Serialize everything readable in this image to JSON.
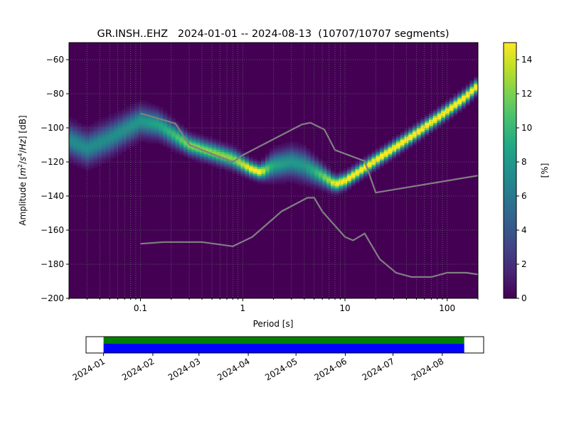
{
  "chart_data": [
    {
      "type": "heatmap",
      "title": "GR.INSH..EHZ   2024-01-01 -- 2024-08-13  (10707/10707 segments)",
      "xlabel": "Period [s]",
      "ylabel_parts": [
        "Amplitude [",
        "m",
        "2",
        "/",
        "s",
        "4",
        "/",
        "Hz",
        "] [dB]"
      ],
      "x_scale": "log",
      "xlim": [
        0.02,
        200
      ],
      "ylim": [
        -200,
        -50
      ],
      "x_ticks": [
        {
          "v": 0.1,
          "label": "0.1"
        },
        {
          "v": 1,
          "label": "1"
        },
        {
          "v": 10,
          "label": "10"
        },
        {
          "v": 100,
          "label": "100"
        }
      ],
      "y_ticks": [
        -200,
        -180,
        -160,
        -140,
        -120,
        -100,
        -80,
        -60
      ],
      "grid": true,
      "colormap": "viridis",
      "colorbar": {
        "label": "[%]",
        "range": [
          0,
          15
        ],
        "ticks": [
          0,
          2,
          4,
          6,
          8,
          10,
          12,
          14
        ]
      },
      "pdf_mode_curve": {
        "period": [
          0.02,
          0.03,
          0.05,
          0.1,
          0.15,
          0.3,
          0.8,
          1.2,
          1.5,
          2,
          3,
          4,
          6,
          8,
          10,
          20,
          50,
          100,
          150,
          200
        ],
        "db": [
          -107,
          -112,
          -106,
          -96,
          -98,
          -110,
          -118,
          -124,
          -126,
          -122,
          -120,
          -122,
          -128,
          -133,
          -131,
          -119,
          -103,
          -90,
          -82,
          -75
        ],
        "spread_db": [
          5.5,
          5.5,
          5.5,
          5,
          4.5,
          3.2,
          3.2,
          2.6,
          2.5,
          4.5,
          5,
          5,
          3.5,
          2.6,
          2.5,
          2.4,
          2.4,
          2.4,
          2.4,
          2.4
        ]
      },
      "noise_models": [
        {
          "period": [
            0.1,
            0.22,
            0.3,
            0.8,
            1,
            3.8,
            4.6,
            6.3,
            8,
            15.6,
            20,
            200
          ],
          "db": [
            -91.5,
            -97.5,
            -110,
            -120,
            -116,
            -98,
            -97,
            -101,
            -113,
            -119.5,
            -138,
            -128
          ]
        },
        {
          "period": [
            0.1,
            0.17,
            0.4,
            0.8,
            1.24,
            2.4,
            4.3,
            5,
            6,
            10,
            12,
            15.6,
            21.9,
            31.6,
            45,
            70,
            100,
            154,
            200
          ],
          "db": [
            -168,
            -167,
            -167,
            -169.5,
            -164,
            -149,
            -141,
            -141,
            -149,
            -164,
            -166,
            -162,
            -177,
            -185,
            -187.5,
            -187.5,
            -185,
            -185,
            -186
          ]
        }
      ],
      "colors": {
        "noise_model": "#808080",
        "background": "#440154"
      }
    },
    {
      "type": "timeline",
      "xlim": [
        "2023-12-21",
        "2024-08-27"
      ],
      "x_ticks": [
        "2024-01",
        "2024-02",
        "2024-03",
        "2024-04",
        "2024-05",
        "2024-06",
        "2024-07",
        "2024-08"
      ],
      "coverage": [
        {
          "start": "2024-01-01",
          "end": "2024-08-13",
          "color": "#008000"
        },
        {
          "start": "2024-01-01",
          "end": "2024-08-13",
          "color": "#0000ff"
        }
      ]
    }
  ]
}
